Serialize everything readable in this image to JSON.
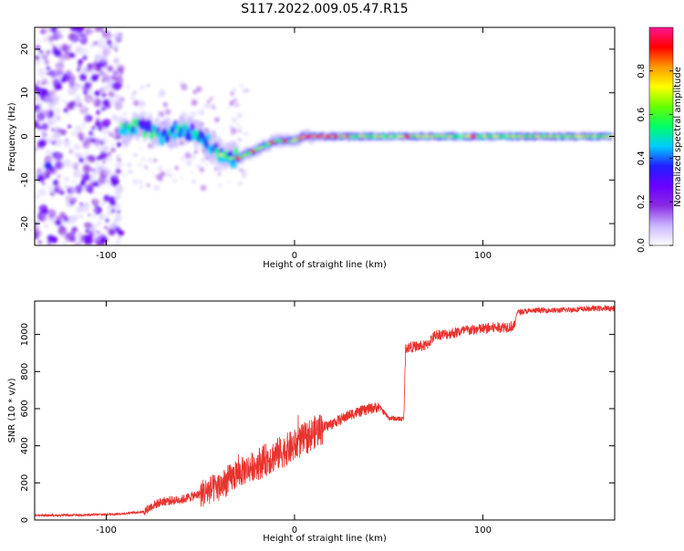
{
  "title": "S117.2022.009.05.47.R15",
  "colors": {
    "snr_line": "#e8322e",
    "colormap": [
      "#ffffff",
      "#c9b6ff",
      "#8a2be2",
      "#6a00ff",
      "#2020ff",
      "#00ccff",
      "#00ff66",
      "#66ff00",
      "#ffff00",
      "#ff9900",
      "#ff0000",
      "#ff1493"
    ]
  },
  "chart_data": [
    {
      "type": "heatmap",
      "title": "",
      "xlabel": "Height of straight line (km)",
      "ylabel": "Frequency (Hz)",
      "xlim": [
        -138,
        170
      ],
      "ylim": [
        -25,
        25
      ],
      "x_ticks": [
        -100,
        0,
        100
      ],
      "y_ticks": [
        -20,
        -10,
        0,
        10,
        20
      ],
      "grid": false,
      "colorbar": {
        "label": "Normalized spectral amplitude",
        "range": [
          0,
          1
        ],
        "ticks": [
          0.0,
          0.2,
          0.4,
          0.6,
          0.8
        ]
      },
      "ridge": {
        "x": [
          -90,
          -85,
          -80,
          -75,
          -70,
          -65,
          -60,
          -55,
          -50,
          -45,
          -40,
          -35,
          -30,
          -25,
          -20,
          -15,
          -10,
          -5,
          0,
          5,
          10,
          20,
          30,
          40,
          60,
          80,
          90,
          100,
          120,
          140,
          160,
          168
        ],
        "frequency": [
          1,
          2,
          2,
          1,
          0,
          1,
          2,
          1,
          0,
          -2,
          -4,
          -5,
          -5,
          -4,
          -3,
          -2,
          -1,
          -1,
          -1,
          0,
          0,
          0,
          0,
          0,
          0,
          0,
          0,
          0,
          0,
          0,
          0,
          0
        ]
      }
    },
    {
      "type": "line",
      "title": "",
      "xlabel": "Height of straight line (km)",
      "ylabel": "SNR (10 * v/v)",
      "xlim": [
        -138,
        170
      ],
      "ylim": [
        0,
        1180
      ],
      "x_ticks": [
        -100,
        0,
        100
      ],
      "y_ticks": [
        0,
        200,
        400,
        600,
        800,
        1000
      ],
      "grid": false,
      "series": [
        {
          "x": [
            -138,
            -120,
            -100,
            -90,
            -80,
            -75,
            -70,
            -60,
            -50,
            -40,
            -30,
            -20,
            -10,
            0,
            10,
            20,
            30,
            40,
            45,
            50,
            55,
            58,
            59,
            60,
            70,
            75,
            80,
            90,
            100,
            110,
            117,
            118,
            130,
            140,
            150,
            160,
            170
          ],
          "values": [
            25,
            25,
            30,
            35,
            45,
            80,
            100,
            110,
            140,
            180,
            250,
            300,
            350,
            400,
            470,
            520,
            570,
            600,
            610,
            550,
            545,
            545,
            930,
            930,
            940,
            1000,
            1000,
            1020,
            1030,
            1040,
            1045,
            1120,
            1130,
            1130,
            1135,
            1140,
            1140
          ]
        }
      ]
    }
  ]
}
